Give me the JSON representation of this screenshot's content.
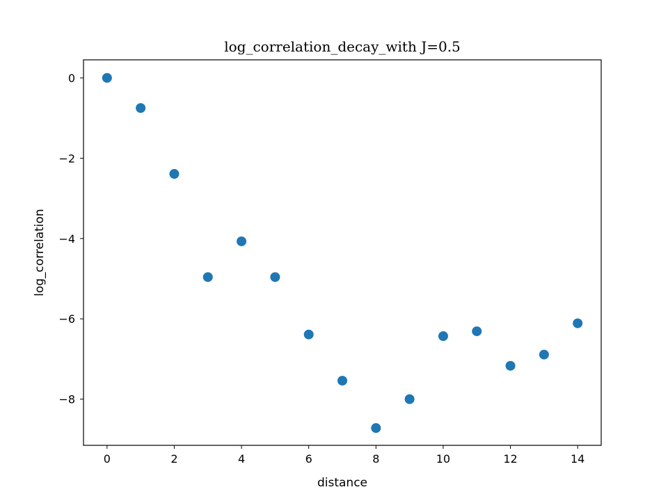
{
  "chart_data": {
    "type": "scatter",
    "title": "log_correlation_decay_with J=0.5",
    "xlabel": "distance",
    "ylabel": "log_correlation",
    "xlim": [
      -0.7,
      14.7
    ],
    "ylim": [
      -9.15,
      0.45
    ],
    "xticks": [
      0,
      2,
      4,
      6,
      8,
      10,
      12,
      14
    ],
    "yticks": [
      0,
      -2,
      -4,
      -6,
      -8
    ],
    "xtick_labels": [
      "0",
      "2",
      "4",
      "6",
      "8",
      "10",
      "12",
      "14"
    ],
    "ytick_labels": [
      "0",
      "−2",
      "−4",
      "−6",
      "−8"
    ],
    "grid": false,
    "marker_color": "#1f77b4",
    "series": [
      {
        "x": [
          0,
          1,
          2,
          3,
          4,
          5,
          6,
          7,
          8,
          9,
          10,
          11,
          12,
          13,
          14
        ],
        "y": [
          0.0,
          -0.75,
          -2.39,
          -4.96,
          -4.07,
          -4.96,
          -6.39,
          -7.54,
          -8.72,
          -8.0,
          -6.43,
          -6.31,
          -7.17,
          -6.89,
          -6.11
        ]
      }
    ]
  }
}
